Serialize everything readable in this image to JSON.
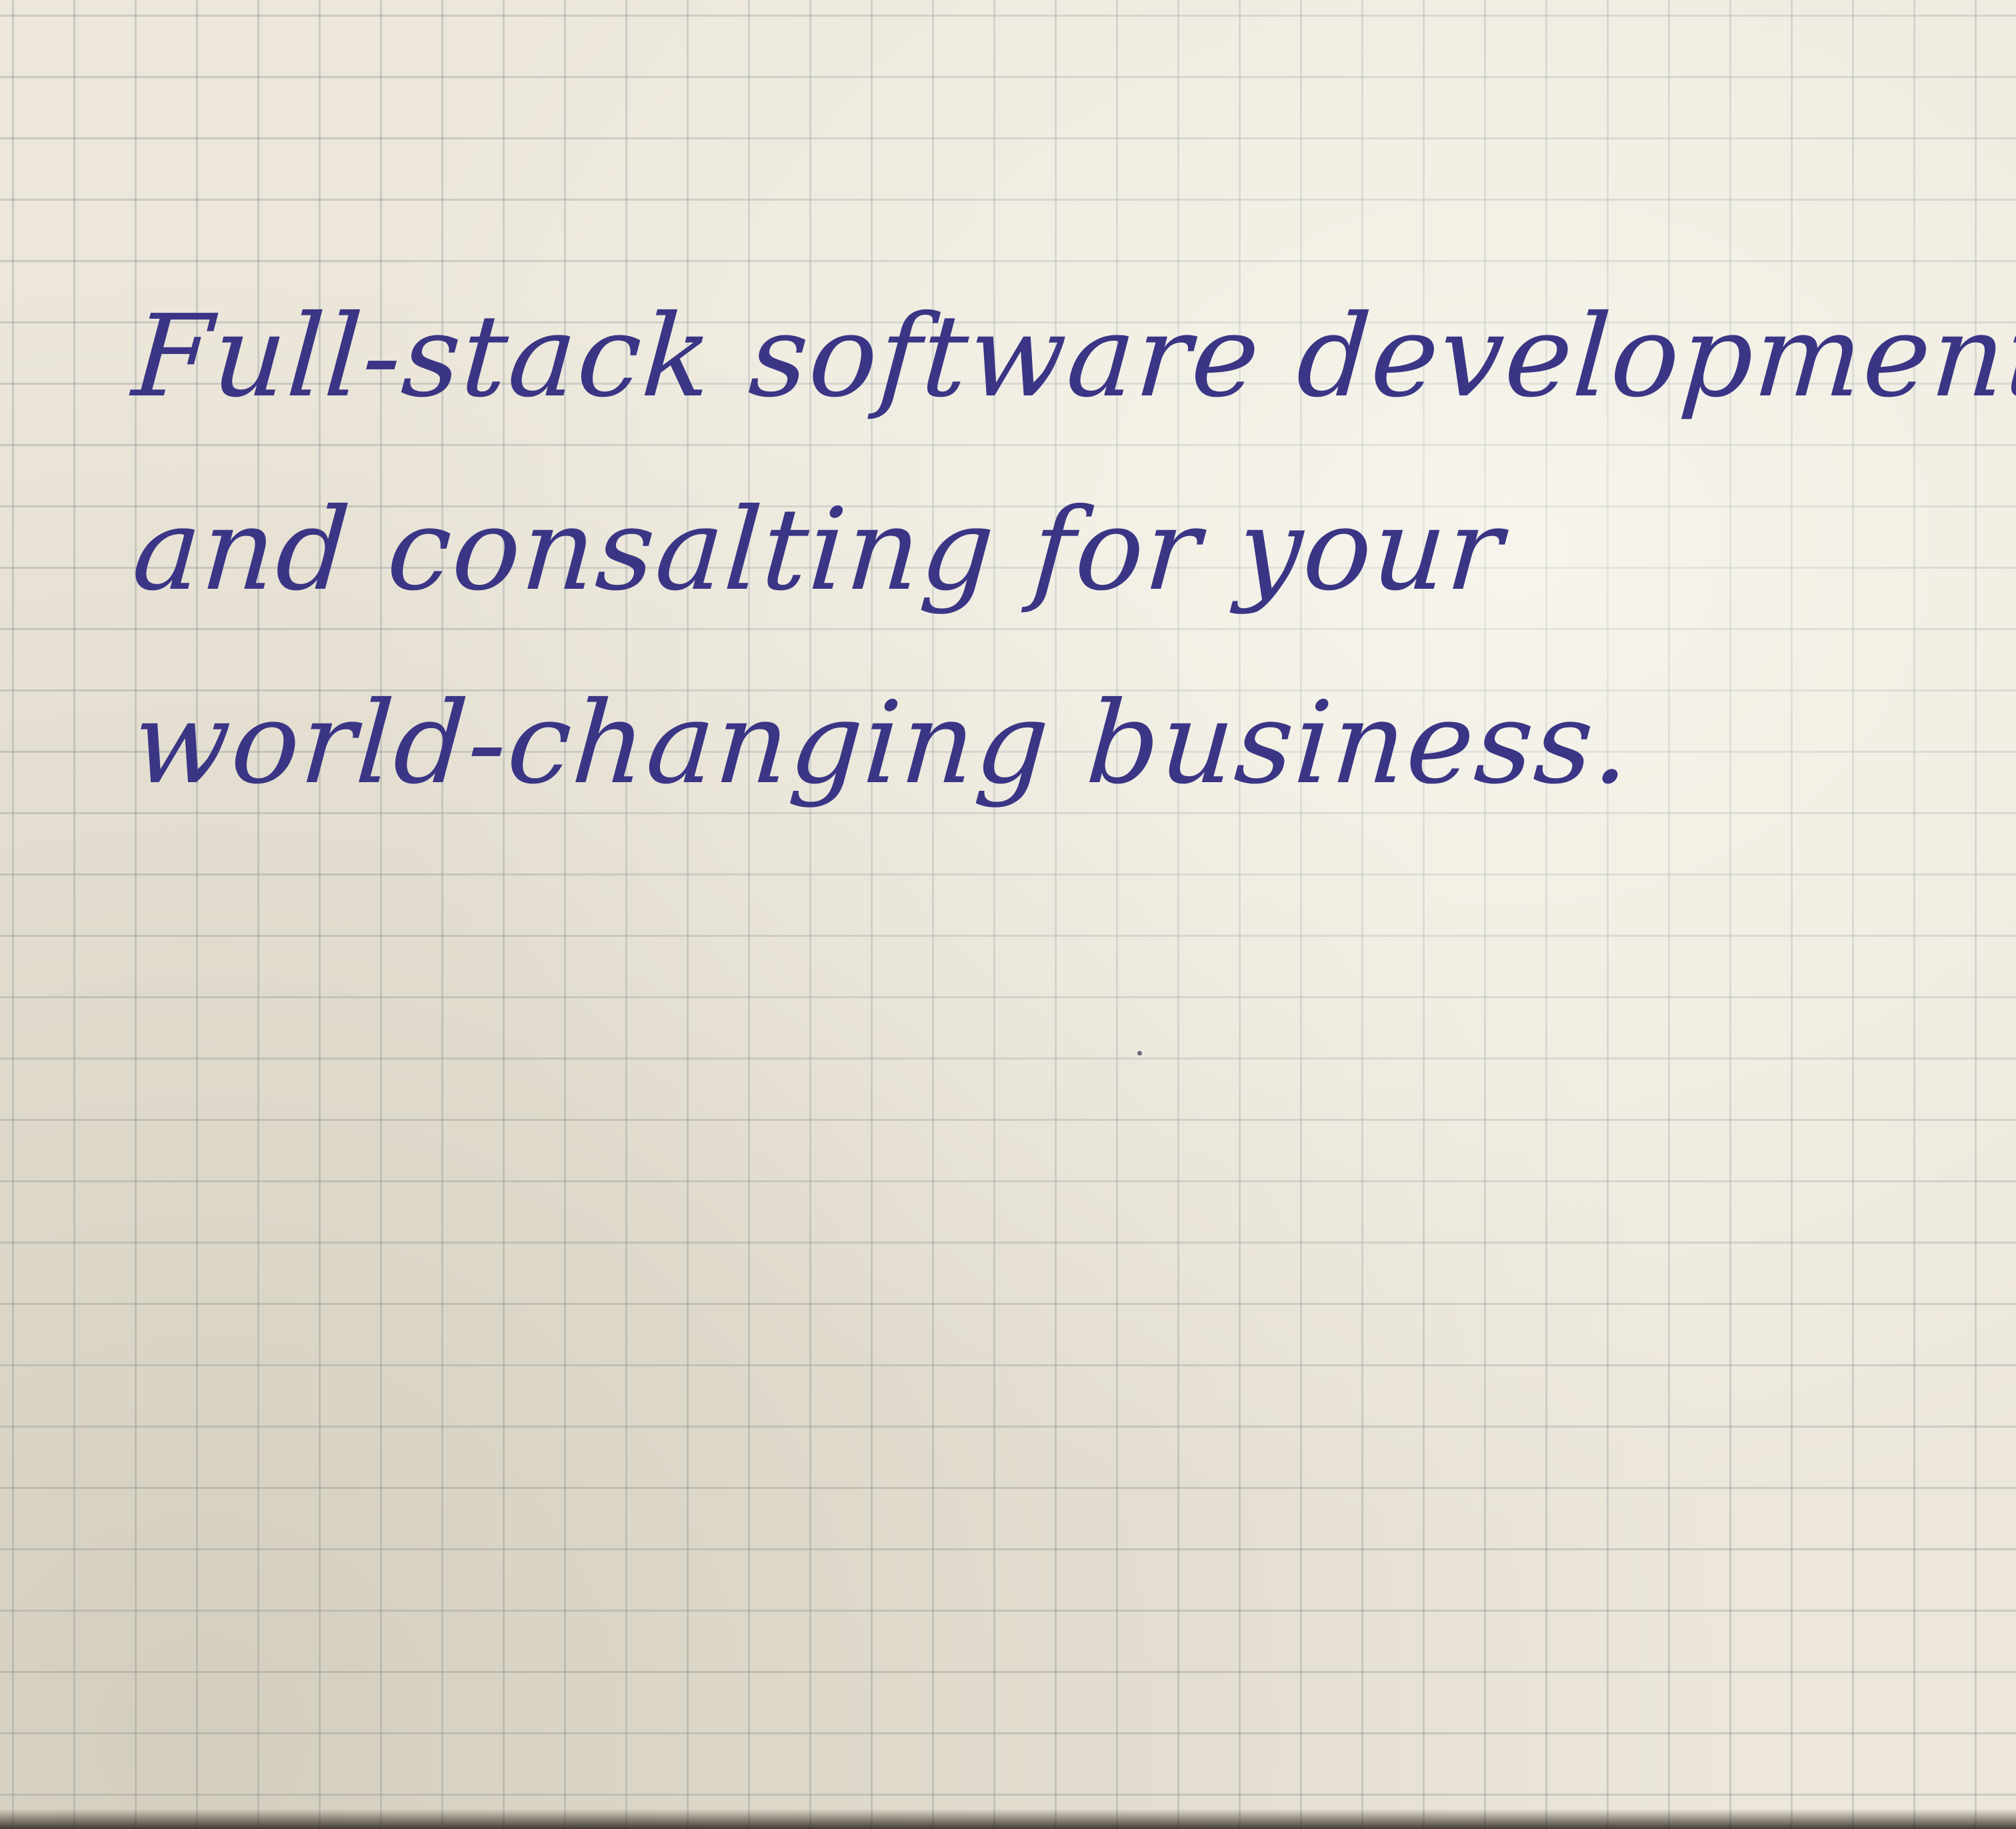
{
  "note": {
    "lines": [
      "Full-stack software development",
      "and consalting for your",
      "world-changing business."
    ]
  },
  "colors": {
    "ink": "#3a3585",
    "paper": "#ece7da",
    "grid": "#7d8c96"
  }
}
